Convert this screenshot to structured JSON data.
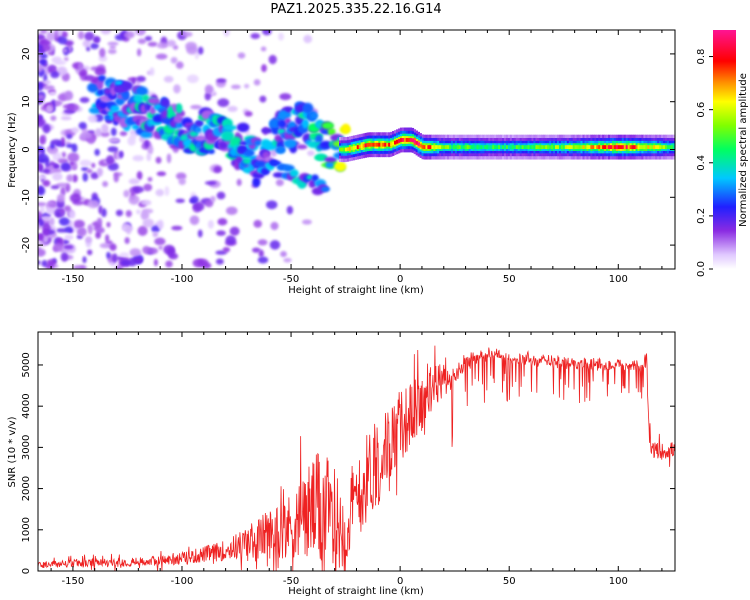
{
  "figure": {
    "title": "PAZ1.2025.335.22.16.G14",
    "colorbar_label": "Normalized spectral amplitude",
    "colorbar_ticks": [
      "0.0",
      "0.2",
      "0.4",
      "0.6",
      "0.8"
    ],
    "colorbar_range": [
      0,
      0.9
    ]
  },
  "chart_data": [
    {
      "type": "heatmap",
      "title": "PAZ1.2025.335.22.16.G14",
      "xlabel": "Height of straight line (km)",
      "ylabel": "Frequency (Hz)",
      "xlim": [
        -166,
        126
      ],
      "ylim": [
        -25,
        25
      ],
      "x_ticks": [
        "-150",
        "-100",
        "-50",
        "0",
        "50",
        "100"
      ],
      "x_tick_values": [
        -150,
        -100,
        -50,
        0,
        50,
        100
      ],
      "y_ticks": [
        "20",
        "10",
        "0",
        "-10",
        "-20"
      ],
      "y_tick_values": [
        20,
        10,
        0,
        -10,
        -20
      ],
      "ridge": {
        "description": "dominant frequency trace vs height",
        "x": [
          -135,
          -120,
          -105,
          -95,
          -85,
          -75,
          -65,
          -55,
          -45,
          -38,
          -30,
          -25,
          -15,
          -5,
          0,
          5,
          10,
          20,
          50,
          80,
          100,
          126
        ],
        "frequency_hz": [
          11,
          8,
          5,
          4,
          4,
          1,
          -3,
          4,
          5,
          3,
          0,
          0,
          1,
          1,
          2,
          2,
          0.5,
          0.5,
          0.5,
          0.5,
          0.5,
          0.5
        ],
        "amplitude": [
          0.3,
          0.35,
          0.35,
          0.35,
          0.35,
          0.35,
          0.3,
          0.35,
          0.35,
          0.4,
          0.45,
          0.6,
          0.75,
          0.7,
          0.8,
          0.85,
          0.8,
          0.5,
          0.45,
          0.55,
          0.8,
          0.45
        ]
      }
    },
    {
      "type": "line",
      "xlabel": "Height of straight line (km)",
      "ylabel": "SNR (10 * v/v)",
      "xlim": [
        -166,
        126
      ],
      "ylim": [
        0,
        5800
      ],
      "x_ticks": [
        "-150",
        "-100",
        "-50",
        "0",
        "50",
        "100"
      ],
      "x_tick_values": [
        -150,
        -100,
        -50,
        0,
        50,
        100
      ],
      "y_ticks": [
        "0",
        "1000",
        "2000",
        "3000",
        "4000",
        "5000"
      ],
      "y_tick_values": [
        0,
        1000,
        2000,
        3000,
        4000,
        5000
      ],
      "color": "#ee2222",
      "series": [
        {
          "name": "SNR",
          "x": [
            -166,
            -150,
            -130,
            -110,
            -100,
            -90,
            -80,
            -70,
            -60,
            -50,
            -40,
            -35,
            -30,
            -25,
            -20,
            -15,
            -10,
            -5,
            0,
            5,
            10,
            15,
            20,
            25,
            30,
            35,
            40,
            45,
            50,
            55,
            60,
            70,
            80,
            90,
            100,
            110,
            113,
            114,
            115,
            120,
            126
          ],
          "y": [
            150,
            180,
            200,
            250,
            300,
            400,
            500,
            700,
            900,
            1100,
            1500,
            1400,
            1200,
            1000,
            1700,
            2300,
            2700,
            3100,
            3500,
            3800,
            4100,
            4400,
            4700,
            4950,
            5200,
            5300,
            5380,
            5350,
            5250,
            5300,
            5250,
            5200,
            5150,
            5120,
            5100,
            5080,
            5080,
            3500,
            2950,
            2900,
            2950
          ],
          "noise_amplitude": [
            80,
            100,
            100,
            120,
            150,
            200,
            250,
            400,
            600,
            800,
            1300,
            1500,
            1300,
            1000,
            1000,
            1100,
            1100,
            900,
            900,
            800,
            700,
            600,
            500,
            400,
            300,
            280,
            250,
            250,
            250,
            250,
            250,
            230,
            220,
            220,
            200,
            200,
            200,
            200,
            200,
            200,
            200
          ]
        }
      ]
    }
  ]
}
